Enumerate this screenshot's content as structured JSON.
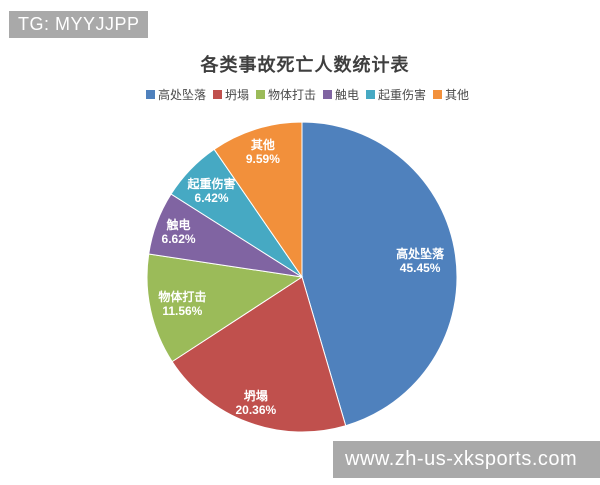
{
  "watermark_top": {
    "text": "TG: MYYJJPP",
    "bg": "#a9a9a9",
    "color": "#ffffff"
  },
  "watermark_bottom": {
    "text": "www.zh-us-xksports.com",
    "bg": "#a9a9a9",
    "color": "#ffffff"
  },
  "chart_data": {
    "type": "pie",
    "title": "各类事故死亡人数统计表",
    "legend_position": "top",
    "start_angle_deg": 0,
    "direction": "clockwise",
    "slices": [
      {
        "label": "高处坠落",
        "value": 45.45,
        "pct_label": "45.45%",
        "color": "#4F81BD",
        "label_r": 0.77
      },
      {
        "label": "坍塌",
        "value": 20.36,
        "pct_label": "20.36%",
        "color": "#C0504D",
        "label_r": 0.86
      },
      {
        "label": "物体打击",
        "value": 11.56,
        "pct_label": "11.56%",
        "color": "#9BBB59",
        "label_r": 0.79
      },
      {
        "label": "触电",
        "value": 6.62,
        "pct_label": "6.62%",
        "color": "#8064A2",
        "label_r": 0.85
      },
      {
        "label": "起重伤害",
        "value": 6.42,
        "pct_label": "6.42%",
        "color": "#46A9C3",
        "label_r": 0.81
      },
      {
        "label": "其他",
        "value": 9.59,
        "pct_label": "9.59%",
        "color": "#F2903B",
        "label_r": 0.85
      }
    ]
  }
}
